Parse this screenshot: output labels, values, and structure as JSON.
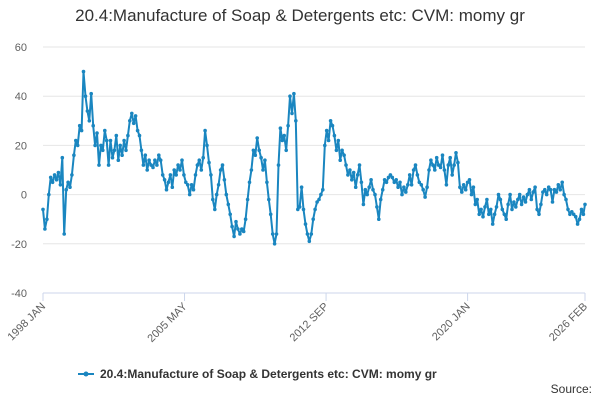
{
  "title": "20.4:Manufacture of Soap & Detergents etc: CVM: momy gr",
  "source_label": "Source:",
  "colors": {
    "series": "#1a86c0",
    "grid": "#e6e6e6",
    "axis": "#ccd6eb",
    "text": "#333333"
  },
  "chart_data": {
    "type": "line",
    "title": "20.4:Manufacture of Soap & Detergents etc: CVM: momy gr",
    "xlabel": "",
    "ylabel": "",
    "ylim": [
      -40,
      60
    ],
    "yticks": [
      -40,
      -20,
      0,
      20,
      40,
      60
    ],
    "x_start_year": 1998.0,
    "x_end_year": 2026.083,
    "xticks": [
      {
        "label": "1998 JAN",
        "year": 1998.0
      },
      {
        "label": "2005 MAY",
        "year": 2005.333
      },
      {
        "label": "2012 SEP",
        "year": 2012.667
      },
      {
        "label": "2020 JAN",
        "year": 2020.0
      },
      {
        "label": "2026 FEB",
        "year": 2026.083
      }
    ],
    "legend": {
      "position": "bottom-center"
    },
    "series": [
      {
        "name": "20.4:Manufacture of Soap & Detergents etc: CVM: momy gr",
        "points": [
          [
            1998.0,
            -6
          ],
          [
            1998.1,
            -14
          ],
          [
            1998.2,
            -10
          ],
          [
            1998.3,
            0
          ],
          [
            1998.4,
            7
          ],
          [
            1998.5,
            5
          ],
          [
            1998.6,
            8
          ],
          [
            1998.7,
            6
          ],
          [
            1998.8,
            9
          ],
          [
            1998.9,
            4
          ],
          [
            1999.0,
            15
          ],
          [
            1999.1,
            -16
          ],
          [
            1999.2,
            2
          ],
          [
            1999.3,
            5
          ],
          [
            1999.4,
            3
          ],
          [
            1999.5,
            8
          ],
          [
            1999.6,
            16
          ],
          [
            1999.7,
            22
          ],
          [
            1999.8,
            20
          ],
          [
            1999.9,
            28
          ],
          [
            2000.0,
            26
          ],
          [
            2000.1,
            50
          ],
          [
            2000.2,
            40
          ],
          [
            2000.3,
            34
          ],
          [
            2000.4,
            30
          ],
          [
            2000.5,
            41
          ],
          [
            2000.6,
            28
          ],
          [
            2000.7,
            20
          ],
          [
            2000.8,
            25
          ],
          [
            2000.9,
            12
          ],
          [
            2001.0,
            20
          ],
          [
            2001.1,
            18
          ],
          [
            2001.2,
            26
          ],
          [
            2001.3,
            22
          ],
          [
            2001.4,
            12
          ],
          [
            2001.5,
            22
          ],
          [
            2001.6,
            15
          ],
          [
            2001.7,
            18
          ],
          [
            2001.8,
            24
          ],
          [
            2001.9,
            14
          ],
          [
            2002.0,
            20
          ],
          [
            2002.1,
            16
          ],
          [
            2002.2,
            22
          ],
          [
            2002.3,
            18
          ],
          [
            2002.4,
            24
          ],
          [
            2002.5,
            30
          ],
          [
            2002.6,
            33
          ],
          [
            2002.7,
            29
          ],
          [
            2002.8,
            32
          ],
          [
            2002.9,
            26
          ],
          [
            2003.0,
            24
          ],
          [
            2003.1,
            18
          ],
          [
            2003.2,
            12
          ],
          [
            2003.3,
            16
          ],
          [
            2003.4,
            10
          ],
          [
            2003.5,
            14
          ],
          [
            2003.6,
            12
          ],
          [
            2003.7,
            11
          ],
          [
            2003.8,
            14
          ],
          [
            2003.9,
            12
          ],
          [
            2004.0,
            16
          ],
          [
            2004.1,
            14
          ],
          [
            2004.2,
            8
          ],
          [
            2004.3,
            6
          ],
          [
            2004.4,
            2
          ],
          [
            2004.5,
            5
          ],
          [
            2004.6,
            8
          ],
          [
            2004.7,
            3
          ],
          [
            2004.8,
            10
          ],
          [
            2004.9,
            8
          ],
          [
            2005.0,
            12
          ],
          [
            2005.1,
            10
          ],
          [
            2005.2,
            14
          ],
          [
            2005.3,
            8
          ],
          [
            2005.4,
            5
          ],
          [
            2005.5,
            4
          ],
          [
            2005.6,
            0
          ],
          [
            2005.7,
            4
          ],
          [
            2005.8,
            2
          ],
          [
            2005.9,
            8
          ],
          [
            2006.0,
            12
          ],
          [
            2006.1,
            14
          ],
          [
            2006.2,
            10
          ],
          [
            2006.3,
            15
          ],
          [
            2006.4,
            26
          ],
          [
            2006.5,
            20
          ],
          [
            2006.6,
            13
          ],
          [
            2006.7,
            8
          ],
          [
            2006.8,
            -2
          ],
          [
            2006.9,
            -6
          ],
          [
            2007.0,
            0
          ],
          [
            2007.1,
            4
          ],
          [
            2007.2,
            10
          ],
          [
            2007.3,
            12
          ],
          [
            2007.4,
            6
          ],
          [
            2007.5,
            0
          ],
          [
            2007.6,
            -4
          ],
          [
            2007.7,
            -8
          ],
          [
            2007.8,
            -13
          ],
          [
            2007.9,
            -17
          ],
          [
            2008.0,
            -11
          ],
          [
            2008.1,
            -14
          ],
          [
            2008.2,
            -16
          ],
          [
            2008.3,
            -14
          ],
          [
            2008.4,
            -15
          ],
          [
            2008.5,
            -10
          ],
          [
            2008.6,
            -2
          ],
          [
            2008.7,
            5
          ],
          [
            2008.8,
            10
          ],
          [
            2008.9,
            18
          ],
          [
            2009.0,
            16
          ],
          [
            2009.1,
            23
          ],
          [
            2009.2,
            18
          ],
          [
            2009.3,
            15
          ],
          [
            2009.4,
            10
          ],
          [
            2009.5,
            14
          ],
          [
            2009.6,
            5
          ],
          [
            2009.7,
            -2
          ],
          [
            2009.8,
            -8
          ],
          [
            2009.9,
            -16
          ],
          [
            2010.0,
            -20
          ],
          [
            2010.1,
            -16
          ],
          [
            2010.2,
            12
          ],
          [
            2010.3,
            27
          ],
          [
            2010.4,
            22
          ],
          [
            2010.5,
            24
          ],
          [
            2010.6,
            18
          ],
          [
            2010.7,
            28
          ],
          [
            2010.8,
            40
          ],
          [
            2010.9,
            33
          ],
          [
            2011.0,
            41
          ],
          [
            2011.1,
            30
          ],
          [
            2011.2,
            -6
          ],
          [
            2011.3,
            -5
          ],
          [
            2011.4,
            3
          ],
          [
            2011.5,
            -6
          ],
          [
            2011.6,
            -12
          ],
          [
            2011.7,
            -16
          ],
          [
            2011.8,
            -19
          ],
          [
            2011.9,
            -16
          ],
          [
            2012.0,
            -10
          ],
          [
            2012.1,
            -6
          ],
          [
            2012.2,
            -3
          ],
          [
            2012.3,
            -2
          ],
          [
            2012.4,
            0
          ],
          [
            2012.5,
            2
          ],
          [
            2012.6,
            20
          ],
          [
            2012.7,
            26
          ],
          [
            2012.8,
            22
          ],
          [
            2012.9,
            30
          ],
          [
            2013.0,
            28
          ],
          [
            2013.1,
            24
          ],
          [
            2013.2,
            18
          ],
          [
            2013.3,
            22
          ],
          [
            2013.4,
            14
          ],
          [
            2013.5,
            18
          ],
          [
            2013.6,
            16
          ],
          [
            2013.7,
            12
          ],
          [
            2013.8,
            8
          ],
          [
            2013.9,
            10
          ],
          [
            2014.0,
            6
          ],
          [
            2014.1,
            9
          ],
          [
            2014.2,
            3
          ],
          [
            2014.3,
            8
          ],
          [
            2014.4,
            12
          ],
          [
            2014.5,
            5
          ],
          [
            2014.6,
            -4
          ],
          [
            2014.7,
            2
          ],
          [
            2014.8,
            0
          ],
          [
            2014.9,
            3
          ],
          [
            2015.0,
            6
          ],
          [
            2015.1,
            2
          ],
          [
            2015.2,
            0
          ],
          [
            2015.3,
            -5
          ],
          [
            2015.4,
            -10
          ],
          [
            2015.5,
            -2
          ],
          [
            2015.6,
            2
          ],
          [
            2015.7,
            6
          ],
          [
            2015.8,
            5
          ],
          [
            2015.9,
            7
          ],
          [
            2016.0,
            8
          ],
          [
            2016.1,
            7
          ],
          [
            2016.2,
            5
          ],
          [
            2016.3,
            6
          ],
          [
            2016.4,
            3
          ],
          [
            2016.5,
            5
          ],
          [
            2016.6,
            0
          ],
          [
            2016.7,
            3
          ],
          [
            2016.8,
            1
          ],
          [
            2016.9,
            4
          ],
          [
            2017.0,
            8
          ],
          [
            2017.1,
            4
          ],
          [
            2017.2,
            10
          ],
          [
            2017.3,
            12
          ],
          [
            2017.4,
            8
          ],
          [
            2017.5,
            5
          ],
          [
            2017.6,
            4
          ],
          [
            2017.7,
            2
          ],
          [
            2017.8,
            -1
          ],
          [
            2017.9,
            3
          ],
          [
            2018.0,
            10
          ],
          [
            2018.1,
            14
          ],
          [
            2018.2,
            12
          ],
          [
            2018.3,
            10
          ],
          [
            2018.4,
            15
          ],
          [
            2018.5,
            12
          ],
          [
            2018.6,
            11
          ],
          [
            2018.7,
            16
          ],
          [
            2018.8,
            10
          ],
          [
            2018.9,
            4
          ],
          [
            2019.0,
            12
          ],
          [
            2019.1,
            15
          ],
          [
            2019.2,
            8
          ],
          [
            2019.3,
            12
          ],
          [
            2019.4,
            17
          ],
          [
            2019.5,
            13
          ],
          [
            2019.6,
            3
          ],
          [
            2019.7,
            1
          ],
          [
            2019.8,
            4
          ],
          [
            2019.9,
            2
          ],
          [
            2020.0,
            5
          ],
          [
            2020.1,
            6
          ],
          [
            2020.2,
            0
          ],
          [
            2020.3,
            3
          ],
          [
            2020.4,
            -4
          ],
          [
            2020.5,
            -2
          ],
          [
            2020.6,
            -8
          ],
          [
            2020.7,
            -6
          ],
          [
            2020.8,
            -9
          ],
          [
            2020.9,
            -5
          ],
          [
            2021.0,
            -2
          ],
          [
            2021.1,
            -8
          ],
          [
            2021.2,
            -6
          ],
          [
            2021.3,
            -12
          ],
          [
            2021.4,
            -8
          ],
          [
            2021.5,
            -5
          ],
          [
            2021.6,
            0
          ],
          [
            2021.7,
            -2
          ],
          [
            2021.8,
            -6
          ],
          [
            2021.9,
            -8
          ],
          [
            2022.0,
            -10
          ],
          [
            2022.1,
            -4
          ],
          [
            2022.2,
            0
          ],
          [
            2022.3,
            -6
          ],
          [
            2022.4,
            -3
          ],
          [
            2022.5,
            -5
          ],
          [
            2022.6,
            -2
          ],
          [
            2022.7,
            0
          ],
          [
            2022.8,
            -4
          ],
          [
            2022.9,
            -1
          ],
          [
            2023.0,
            -3
          ],
          [
            2023.1,
            0
          ],
          [
            2023.2,
            2
          ],
          [
            2023.3,
            -2
          ],
          [
            2023.4,
            1
          ],
          [
            2023.5,
            3
          ],
          [
            2023.6,
            -6
          ],
          [
            2023.7,
            -8
          ],
          [
            2023.8,
            -4
          ],
          [
            2023.9,
            1
          ],
          [
            2024.0,
            2
          ],
          [
            2024.1,
            0
          ],
          [
            2024.2,
            3
          ],
          [
            2024.3,
            2
          ],
          [
            2024.4,
            -3
          ],
          [
            2024.5,
            2
          ],
          [
            2024.6,
            1
          ],
          [
            2024.7,
            4
          ],
          [
            2024.8,
            2
          ],
          [
            2024.9,
            5
          ],
          [
            2025.0,
            0
          ],
          [
            2025.1,
            -2
          ],
          [
            2025.2,
            -6
          ],
          [
            2025.3,
            -8
          ],
          [
            2025.4,
            -7
          ],
          [
            2025.5,
            -8
          ],
          [
            2025.6,
            -9
          ],
          [
            2025.7,
            -12
          ],
          [
            2025.8,
            -10
          ],
          [
            2025.9,
            -6
          ],
          [
            2026.0,
            -8
          ],
          [
            2026.083,
            -4
          ]
        ]
      }
    ]
  }
}
